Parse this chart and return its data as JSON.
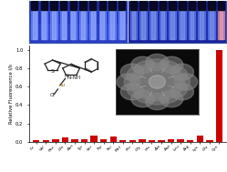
{
  "categories": [
    "Ile",
    "Val",
    "Phe",
    "Gln",
    "Asn",
    "Tyr",
    "Ser",
    "Trp",
    "Thr",
    "Met",
    "Pro",
    "Gly",
    "His",
    "Ala",
    "Asp",
    "Leu",
    "Arg",
    "Lys",
    "Glu",
    "Cys"
  ],
  "values": [
    0.022,
    0.018,
    0.03,
    0.045,
    0.028,
    0.032,
    0.068,
    0.025,
    0.058,
    0.022,
    0.018,
    0.025,
    0.022,
    0.018,
    0.025,
    0.028,
    0.022,
    0.065,
    0.018,
    1.0
  ],
  "bar_color": "#cc0000",
  "ylabel": "Relative Fluorescence I/I₀",
  "ylim": [
    0,
    1.05
  ],
  "yticks": [
    0.0,
    0.2,
    0.4,
    0.6,
    0.8,
    1.0
  ],
  "fig_bg": "#ffffff",
  "plot_bg": "#ffffff",
  "border_color": "#3355aa",
  "photo_bg": "#1a1aaa",
  "tube_color": "#4466ee",
  "tube_glow": "#88aaff",
  "tube_dark": "#080820",
  "right_panel_bright": "#cc8899"
}
